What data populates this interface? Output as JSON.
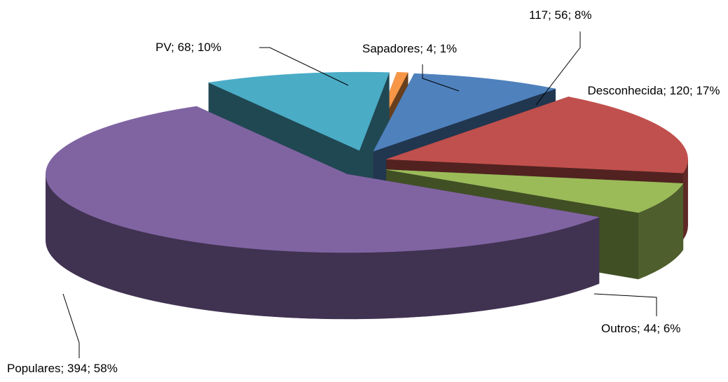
{
  "chart_data": {
    "type": "pie",
    "categories": [
      "PV",
      "Sapadores",
      "117",
      "Desconhecida",
      "Outros",
      "Populares"
    ],
    "values": [
      68,
      4,
      56,
      120,
      44,
      394
    ],
    "value_labels": [
      "PV; 68; 10%",
      "Sapadores; 4; 1%",
      "117; 56; 8%",
      "Desconhecida; 120; 17%",
      "Outros; 44; 6%",
      "Populares; 394; 58%"
    ],
    "colors": [
      "#4bacc6",
      "#f79646",
      "#4f81bd",
      "#c0504d",
      "#9bbb59",
      "#8064a2"
    ]
  }
}
